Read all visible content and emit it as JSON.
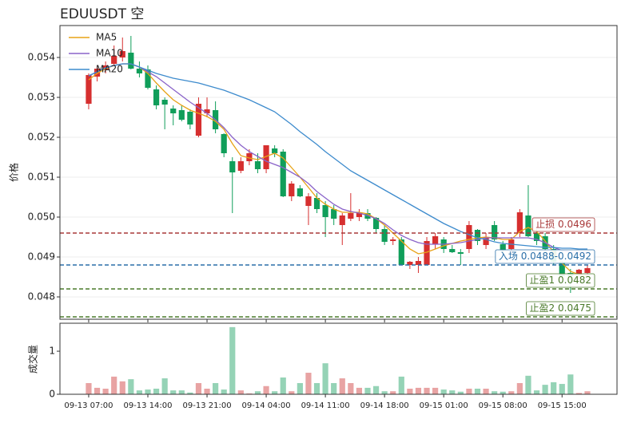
{
  "chart_data": {
    "type": "candlestick",
    "title": "EDUUSDT  空",
    "ylabel": "价格",
    "up_color": "#d62f2f",
    "down_color": "#109e5a",
    "up_volume_color": "#e8a3a3",
    "down_volume_color": "#95d3b6",
    "grid": true,
    "legend": "upper left",
    "categories": [
      "09-13 07:00",
      null,
      null,
      null,
      null,
      null,
      null,
      "09-13 14:00",
      null,
      null,
      null,
      null,
      null,
      null,
      "09-13 21:00",
      null,
      null,
      null,
      null,
      null,
      null,
      "09-14 04:00",
      null,
      null,
      null,
      null,
      null,
      null,
      "09-14 11:00",
      null,
      null,
      null,
      null,
      null,
      null,
      "09-14 18:00",
      null,
      null,
      null,
      null,
      null,
      null,
      "09-15 01:00",
      null,
      null,
      null,
      null,
      null,
      null,
      "09-15 08:00",
      null,
      null,
      null,
      null,
      null,
      null,
      "09-15 15:00",
      null,
      null,
      null
    ],
    "ohlc": [
      [
        0.05284,
        0.0536,
        0.0527,
        0.05356
      ],
      [
        0.05352,
        0.0538,
        0.0534,
        0.05372
      ],
      [
        0.05368,
        0.0539,
        0.0536,
        0.0538
      ],
      [
        0.05384,
        0.0543,
        0.0538,
        0.05404
      ],
      [
        0.054,
        0.0545,
        0.0539,
        0.05416
      ],
      [
        0.05412,
        0.05454,
        0.0537,
        0.05372
      ],
      [
        0.05372,
        0.0539,
        0.0535,
        0.0536
      ],
      [
        0.0537,
        0.0538,
        0.0532,
        0.05324
      ],
      [
        0.0532,
        0.0533,
        0.0527,
        0.0528
      ],
      [
        0.05294,
        0.053,
        0.0522,
        0.05282
      ],
      [
        0.05272,
        0.0528,
        0.0523,
        0.0526
      ],
      [
        0.05268,
        0.0528,
        0.0524,
        0.05244
      ],
      [
        0.05264,
        0.0527,
        0.0522,
        0.05232
      ],
      [
        0.05204,
        0.053,
        0.052,
        0.05284
      ],
      [
        0.0526,
        0.053,
        0.0525,
        0.0527
      ],
      [
        0.05268,
        0.0529,
        0.0521,
        0.0522
      ],
      [
        0.05208,
        0.0521,
        0.0515,
        0.0516
      ],
      [
        0.0514,
        0.0515,
        0.0501,
        0.05112
      ],
      [
        0.05116,
        0.0515,
        0.0511,
        0.0514
      ],
      [
        0.0514,
        0.0517,
        0.0513,
        0.0516
      ],
      [
        0.0514,
        0.0516,
        0.0511,
        0.0512
      ],
      [
        0.0512,
        0.0518,
        0.0511,
        0.0518
      ],
      [
        0.05172,
        0.0518,
        0.0515,
        0.0516
      ],
      [
        0.05164,
        0.0517,
        0.0505,
        0.05052
      ],
      [
        0.05052,
        0.0509,
        0.0504,
        0.05084
      ],
      [
        0.05072,
        0.0508,
        0.0505,
        0.05052
      ],
      [
        0.05028,
        0.0506,
        0.0498,
        0.05052
      ],
      [
        0.05048,
        0.0506,
        0.0501,
        0.0502
      ],
      [
        0.0503,
        0.0504,
        0.0495,
        0.05
      ],
      [
        0.0502,
        0.0503,
        0.0498,
        0.04996
      ],
      [
        0.0498,
        0.0501,
        0.0493,
        0.05004
      ],
      [
        0.04996,
        0.0506,
        0.0499,
        0.0501
      ],
      [
        0.05,
        0.0502,
        0.0499,
        0.0501
      ],
      [
        0.0501,
        0.0502,
        0.0499,
        0.04996
      ],
      [
        0.04998,
        0.05,
        0.0496,
        0.0497
      ],
      [
        0.0497,
        0.0498,
        0.0493,
        0.04938
      ],
      [
        0.0494,
        0.0495,
        0.0493,
        0.04944
      ],
      [
        0.04944,
        0.0495,
        0.0488,
        0.0488
      ],
      [
        0.0488,
        0.0489,
        0.0487,
        0.04888
      ],
      [
        0.0488,
        0.049,
        0.0486,
        0.0489
      ],
      [
        0.0488,
        0.0495,
        0.0488,
        0.0494
      ],
      [
        0.04932,
        0.0496,
        0.0492,
        0.04952
      ],
      [
        0.04944,
        0.0495,
        0.0491,
        0.0492
      ],
      [
        0.0492,
        0.0493,
        0.0491,
        0.04912
      ],
      [
        0.04912,
        0.0492,
        0.0488,
        0.04908
      ],
      [
        0.0492,
        0.0499,
        0.0491,
        0.0498
      ],
      [
        0.04968,
        0.0497,
        0.0493,
        0.0494
      ],
      [
        0.0493,
        0.0496,
        0.0492,
        0.0495
      ],
      [
        0.0498,
        0.0499,
        0.0494,
        0.04944
      ],
      [
        0.04932,
        0.0494,
        0.0491,
        0.04916
      ],
      [
        0.0492,
        0.0495,
        0.0491,
        0.04944
      ],
      [
        0.0496,
        0.0502,
        0.0495,
        0.05012
      ],
      [
        0.05004,
        0.0508,
        0.0495,
        0.04952
      ],
      [
        0.0496,
        0.0497,
        0.0493,
        0.0494
      ],
      [
        0.04952,
        0.0496,
        0.0491,
        0.0492
      ],
      [
        0.0492,
        0.0493,
        0.0488,
        0.04888
      ],
      [
        0.04888,
        0.0489,
        0.0485,
        0.04852
      ],
      [
        0.0486,
        0.0487,
        0.0481,
        0.04852
      ],
      [
        0.04856,
        0.0487,
        0.0485,
        0.04868
      ],
      [
        0.0486,
        0.0488,
        0.0485,
        0.04872
      ]
    ],
    "series": [
      {
        "name": "MA5",
        "color": "#e8a317",
        "values": [
          0.05344,
          0.0536,
          0.05372,
          0.0538,
          0.05384,
          0.05384,
          0.05376,
          0.0536,
          0.05336,
          0.05314,
          0.05294,
          0.0528,
          0.05268,
          0.0526,
          0.05252,
          0.0524,
          0.0522,
          0.05184,
          0.05154,
          0.05148,
          0.05144,
          0.05152,
          0.0516,
          0.05148,
          0.05124,
          0.051,
          0.05074,
          0.05048,
          0.05032,
          0.0502,
          0.05012,
          0.05012,
          0.05012,
          0.05008,
          0.04996,
          0.0498,
          0.0496,
          0.0494,
          0.0492,
          0.04908,
          0.04912,
          0.0492,
          0.04928,
          0.04934,
          0.0494,
          0.04944,
          0.04948,
          0.0495,
          0.04948,
          0.04944,
          0.04944,
          0.04964,
          0.04974,
          0.04964,
          0.0494,
          0.04912,
          0.04884,
          0.04864,
          0.04856,
          0.04852
        ]
      },
      {
        "name": "MA10",
        "color": "#8a63c9",
        "values": [
          0.05354,
          0.05364,
          0.05374,
          0.0538,
          0.05384,
          0.05384,
          0.05376,
          0.05364,
          0.05352,
          0.05336,
          0.0532,
          0.05304,
          0.05288,
          0.05274,
          0.0526,
          0.05244,
          0.05224,
          0.052,
          0.0518,
          0.05164,
          0.05152,
          0.0514,
          0.05132,
          0.05124,
          0.05112,
          0.051,
          0.05084,
          0.05064,
          0.05048,
          0.05032,
          0.0502,
          0.05014,
          0.0501,
          0.05004,
          0.04996,
          0.04984,
          0.04968,
          0.04954,
          0.04944,
          0.04936,
          0.04932,
          0.04932,
          0.04932,
          0.04934,
          0.04936,
          0.0494,
          0.04944,
          0.04948,
          0.04948,
          0.04948,
          0.04948,
          0.04948,
          0.04948,
          0.04944,
          0.04936,
          0.04924,
          0.04916,
          0.04912,
          0.04912,
          0.0491
        ]
      },
      {
        "name": "MA20",
        "color": "#3d8bcd",
        "values": [
          0.05354,
          0.05364,
          0.05374,
          0.0538,
          0.05384,
          0.05384,
          0.05376,
          0.05368,
          0.0536,
          0.05354,
          0.05348,
          0.05344,
          0.0534,
          0.05336,
          0.0533,
          0.05324,
          0.05318,
          0.0531,
          0.05302,
          0.05294,
          0.05284,
          0.05274,
          0.05264,
          0.05248,
          0.05232,
          0.05214,
          0.05198,
          0.05182,
          0.05164,
          0.05148,
          0.05132,
          0.05116,
          0.05104,
          0.05092,
          0.0508,
          0.05068,
          0.05056,
          0.05044,
          0.05032,
          0.0502,
          0.05008,
          0.04996,
          0.04984,
          0.04974,
          0.04964,
          0.04956,
          0.04948,
          0.04944,
          0.04938,
          0.04934,
          0.04932,
          0.0493,
          0.04928,
          0.04926,
          0.04924,
          0.04924,
          0.04922,
          0.04922,
          0.0492,
          0.0492
        ]
      }
    ],
    "levels": [
      {
        "label": "止损 0.0496",
        "value": 0.0496,
        "color": "#a83838"
      },
      {
        "label": "入场 0.0488-0.0492",
        "value": 0.0488,
        "color": "#2a6fa8"
      },
      {
        "label": "止盈1 0.0482",
        "value": 0.0482,
        "color": "#4a7a2a"
      },
      {
        "label": "止盈2 0.0475",
        "value": 0.0475,
        "color": "#4a7a2a"
      }
    ],
    "ylim": [
      0.04744,
      0.0548
    ],
    "yticks": [
      0.048,
      0.049,
      {
        "value": 0.05,
        "label": "0.050"
      },
      0.051,
      0.052,
      0.053,
      0.054
    ],
    "volume": {
      "ylabel": "成交量",
      "offset_label": "1e6",
      "ylim": [
        0,
        1.65
      ],
      "yticks": [
        0,
        1
      ],
      "values": [
        0.26,
        0.15,
        0.13,
        0.41,
        0.3,
        0.35,
        0.09,
        0.11,
        0.13,
        0.37,
        0.09,
        0.09,
        0.04,
        0.26,
        0.13,
        0.26,
        0.11,
        1.56,
        0.09,
        0.02,
        0.07,
        0.19,
        0.07,
        0.39,
        0.07,
        0.26,
        0.5,
        0.26,
        0.72,
        0.26,
        0.37,
        0.26,
        0.15,
        0.15,
        0.19,
        0.07,
        0.07,
        0.41,
        0.13,
        0.15,
        0.15,
        0.15,
        0.11,
        0.09,
        0.06,
        0.13,
        0.13,
        0.13,
        0.07,
        0.06,
        0.07,
        0.26,
        0.43,
        0.09,
        0.22,
        0.28,
        0.24,
        0.46,
        0.03,
        0.07
      ]
    }
  }
}
